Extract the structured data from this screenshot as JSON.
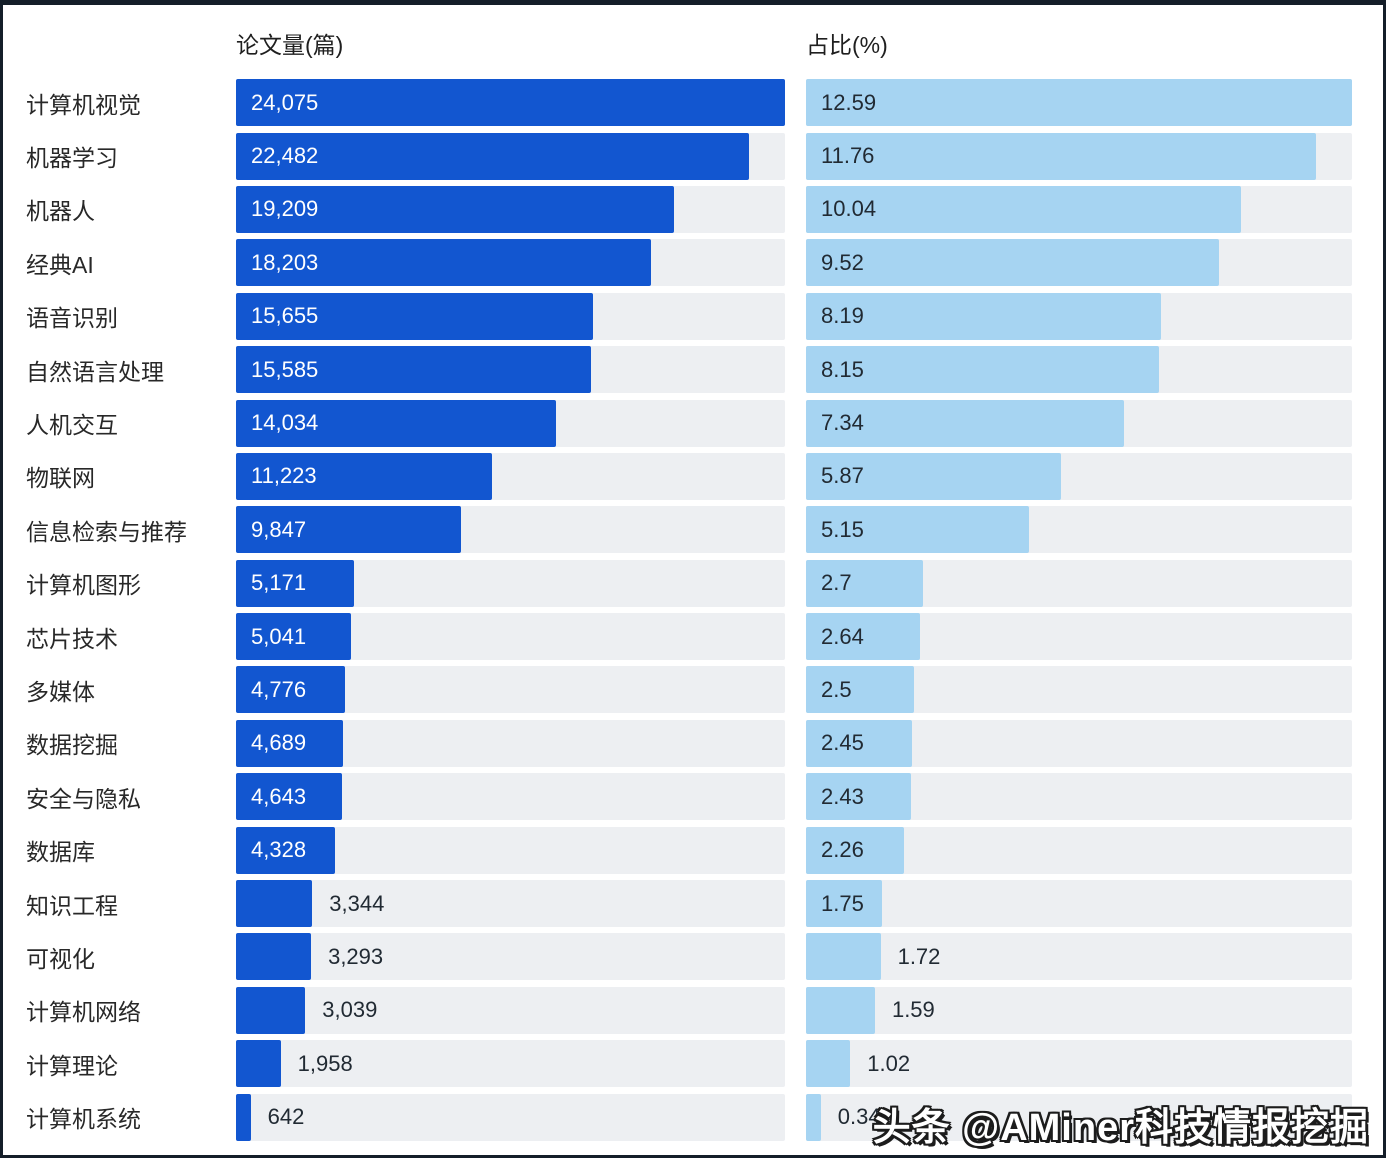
{
  "chart_data": {
    "type": "bar",
    "orientation": "horizontal",
    "categories": [
      "计算机视觉",
      "机器学习",
      "机器人",
      "经典AI",
      "语音识别",
      "自然语言处理",
      "人机交互",
      "物联网",
      "信息检索与推荐",
      "计算机图形",
      "芯片技术",
      "多媒体",
      "数据挖掘",
      "安全与隐私",
      "数据库",
      "知识工程",
      "可视化",
      "计算机网络",
      "计算理论",
      "计算机系统"
    ],
    "series": [
      {
        "name": "论文量(篇)",
        "values": [
          24075,
          22482,
          19209,
          18203,
          15655,
          15585,
          14034,
          11223,
          9847,
          5171,
          5041,
          4776,
          4689,
          4643,
          4328,
          3344,
          3293,
          3039,
          1958,
          642
        ],
        "labels": [
          "24,075",
          "22,482",
          "19,209",
          "18,203",
          "15,655",
          "15,585",
          "14,034",
          "11,223",
          "9,847",
          "5,171",
          "5,041",
          "4,776",
          "4,689",
          "4,643",
          "4,328",
          "3,344",
          "3,293",
          "3,039",
          "1,958",
          "642"
        ],
        "axis_max": 24075
      },
      {
        "name": "占比(%)",
        "values": [
          12.59,
          11.76,
          10.04,
          9.52,
          8.19,
          8.15,
          7.34,
          5.87,
          5.15,
          2.7,
          2.64,
          2.5,
          2.45,
          2.43,
          2.26,
          1.75,
          1.72,
          1.59,
          1.02,
          0.34
        ],
        "labels": [
          "12.59",
          "11.76",
          "10.04",
          "9.52",
          "8.19",
          "8.15",
          "7.34",
          "5.87",
          "5.15",
          "2.7",
          "2.64",
          "2.5",
          "2.45",
          "2.43",
          "2.26",
          "1.75",
          "1.72",
          "1.59",
          "1.02",
          "0.34"
        ],
        "axis_max": 12.59
      }
    ],
    "legend_position": "none",
    "grid": false
  },
  "headers": {
    "papers": "论文量(篇)",
    "share": "占比(%)"
  },
  "watermark": "头条 @AMiner科技情报挖掘",
  "colors": {
    "papers_bar": "#1256d0",
    "share_bar": "#a6d4f2",
    "track": "#edeff2",
    "value_on_dark": "#ffffff",
    "value_dark_text": "#212a33",
    "category_text": "#282828",
    "header_text": "#1f1f1f",
    "background": "#ffffff",
    "watermark_fill": "#ffffff",
    "watermark_outline": "#1c1c1c"
  }
}
